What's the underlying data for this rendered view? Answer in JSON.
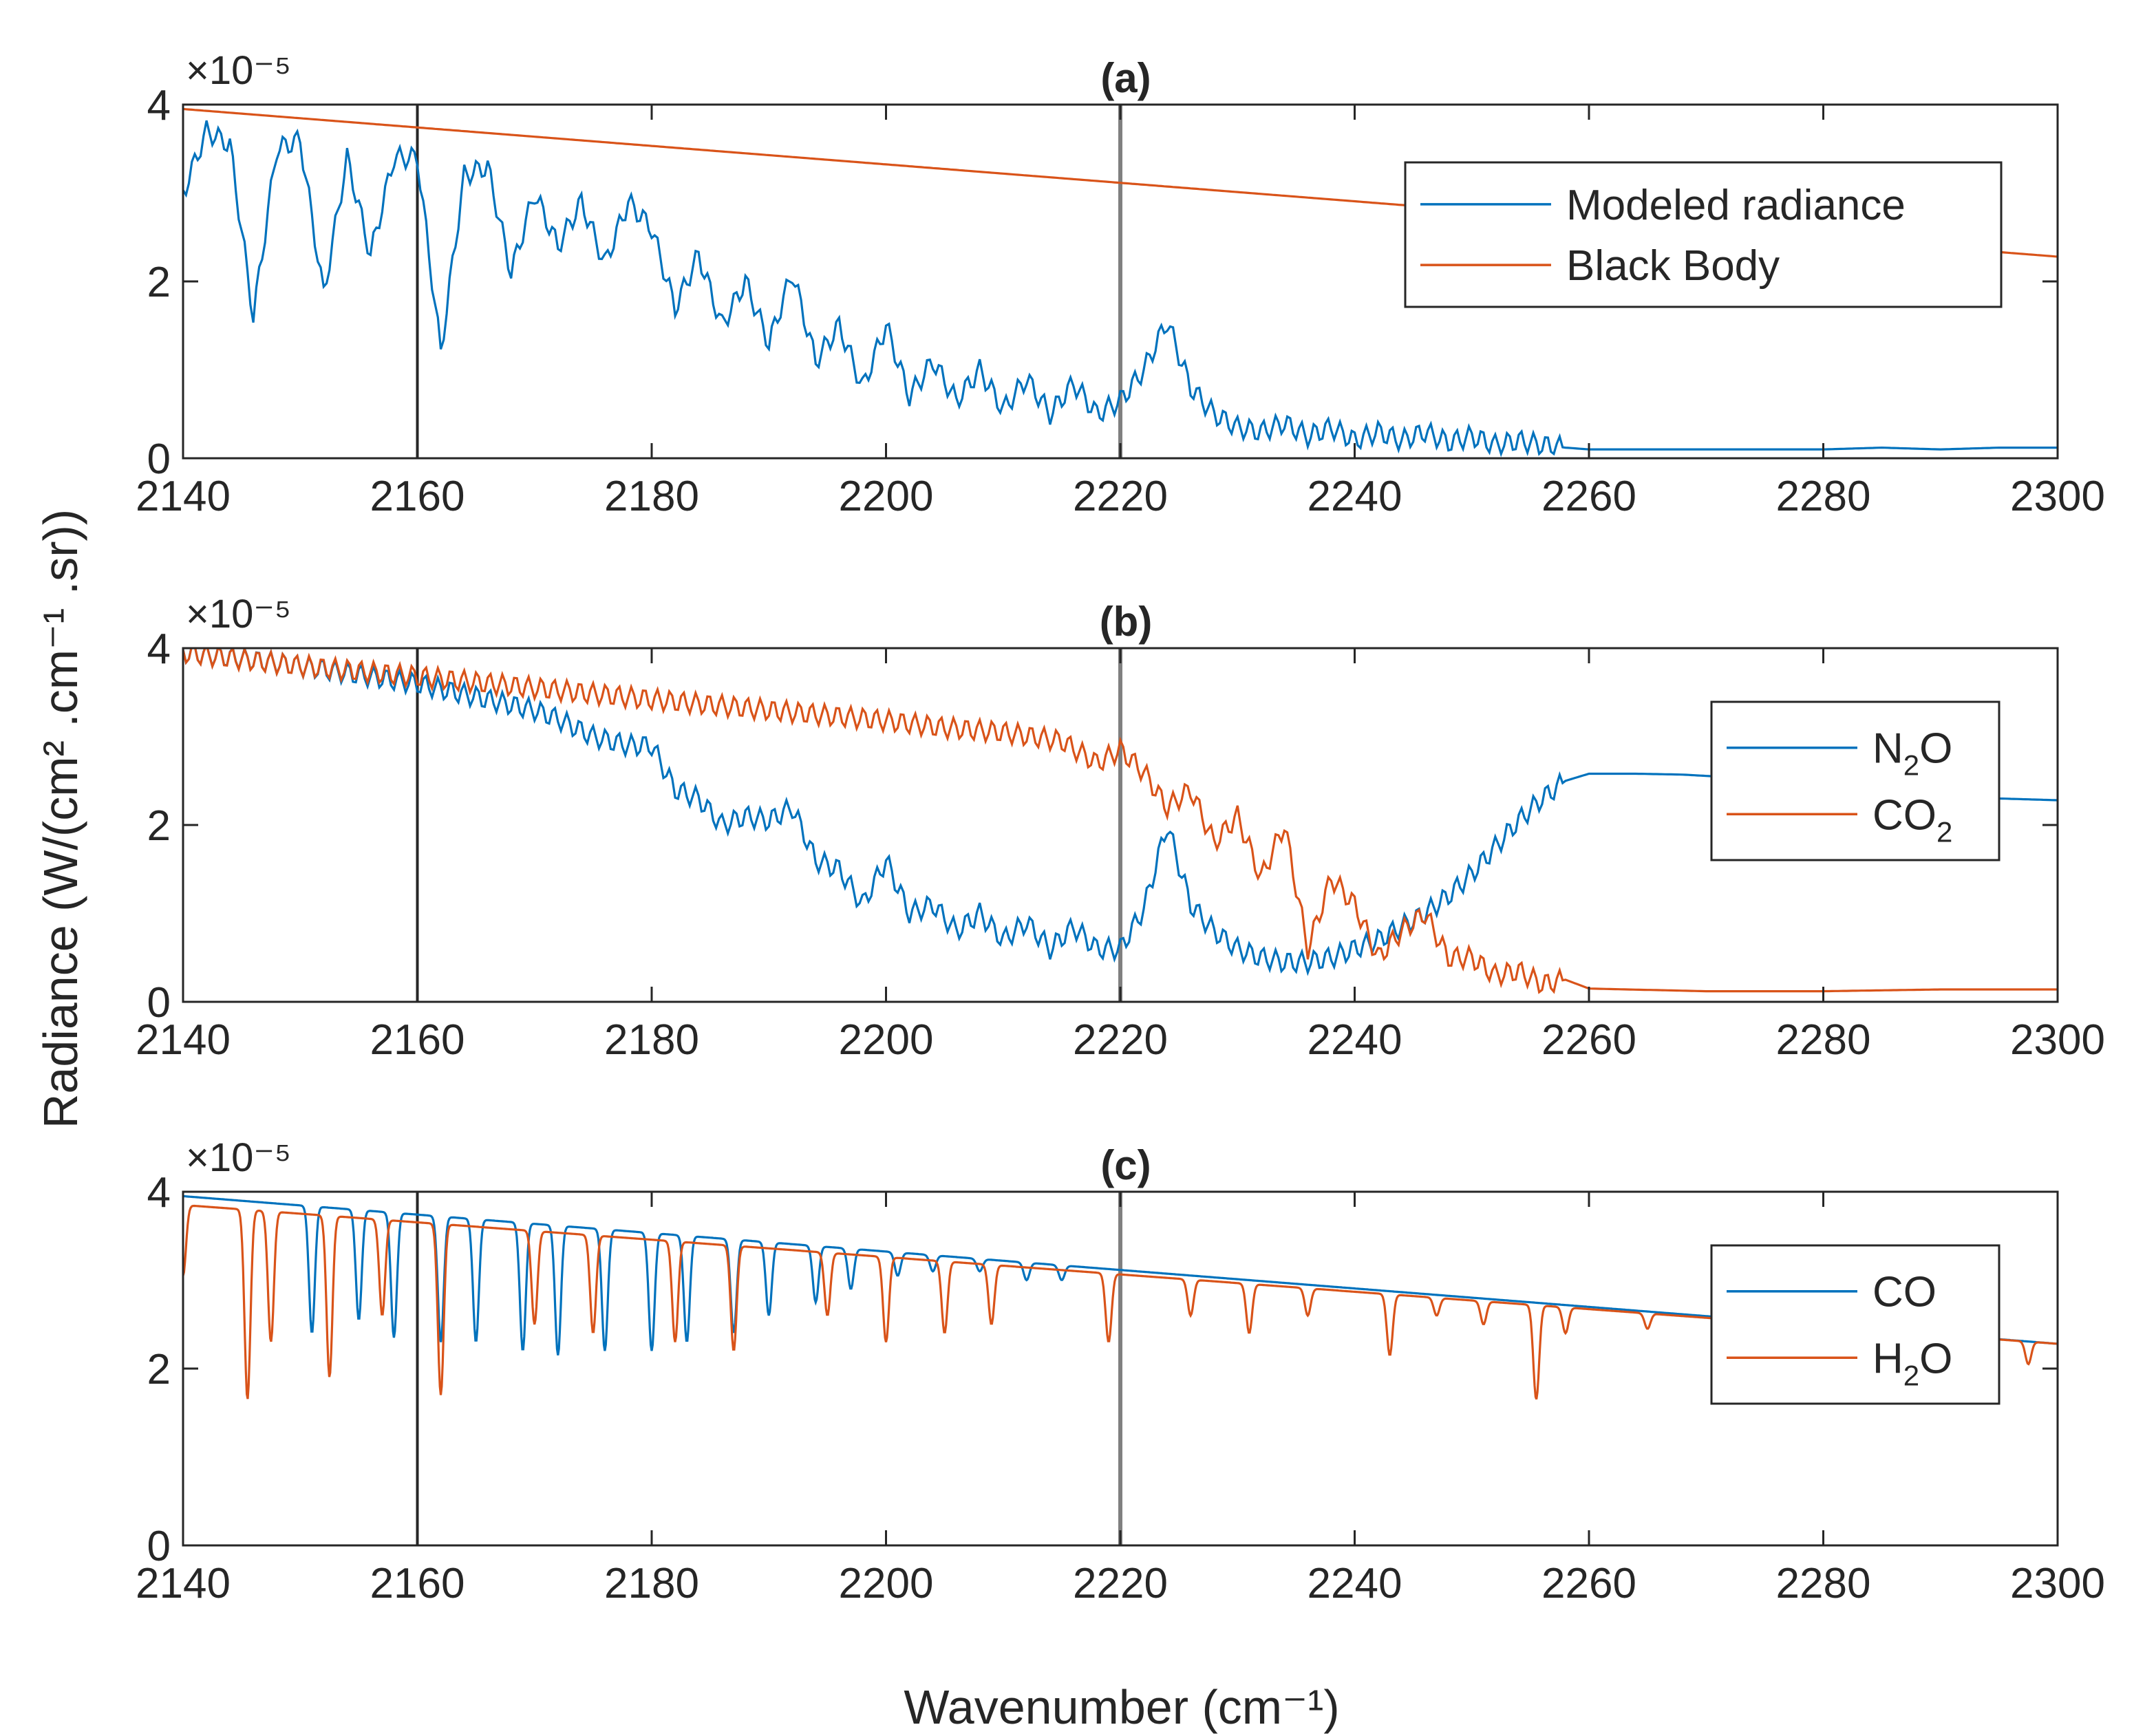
{
  "figure": {
    "ylabel": "Radiance (W/(cm² .cm⁻¹ .sr))",
    "xlabel": "Wavenumber (cm⁻¹)",
    "exponent_label": "×10⁻⁵"
  },
  "chart_data": [
    {
      "type": "line",
      "title": "(a)",
      "xlabel": "Wavenumber (cm⁻¹)",
      "ylabel": "Radiance (W/(cm² .cm⁻¹ .sr))",
      "y_scale_label": "×10⁻⁵",
      "xlim": [
        2140,
        2300
      ],
      "ylim": [
        0,
        4
      ],
      "x_ticks": [
        "2140",
        "2160",
        "2180",
        "2200",
        "2220",
        "2240",
        "2260",
        "2280",
        "2300"
      ],
      "y_ticks": [
        "0",
        "2",
        "4"
      ],
      "vertical_lines": [
        2160,
        2220
      ],
      "legend_position": "top-right",
      "series": [
        {
          "name": "Modeled radiance",
          "color": "#0072BD",
          "legend": "Modeled radiance",
          "x": [
            2140,
            2142,
            2144,
            2146,
            2148,
            2150,
            2152,
            2154,
            2156,
            2158,
            2160,
            2162,
            2164,
            2166,
            2168,
            2170,
            2172,
            2174,
            2176,
            2178,
            2180,
            2182,
            2184,
            2186,
            2188,
            2190,
            2192,
            2194,
            2196,
            2198,
            2200,
            2202,
            2204,
            2206,
            2208,
            2210,
            2212,
            2214,
            2216,
            2218,
            2220,
            2222,
            2224,
            2226,
            2228,
            2230,
            2232,
            2234,
            2236,
            2238,
            2240,
            2242,
            2244,
            2246,
            2248,
            2250,
            2252,
            2254,
            2256,
            2258,
            2260,
            2265,
            2270,
            2275,
            2280,
            2285,
            2290,
            2295,
            2300
          ],
          "values": [
            3.0,
            3.7,
            3.55,
            1.6,
            3.5,
            3.6,
            1.85,
            3.4,
            2.3,
            3.4,
            3.4,
            1.2,
            3.2,
            3.3,
            2.1,
            3.0,
            2.4,
            2.9,
            2.2,
            2.9,
            2.6,
            1.7,
            2.3,
            1.5,
            2.0,
            1.3,
            2.1,
            1.1,
            1.5,
            0.8,
            1.5,
            0.7,
            1.1,
            0.65,
            1.0,
            0.55,
            0.9,
            0.5,
            0.85,
            0.5,
            0.65,
            1.0,
            1.55,
            0.8,
            0.5,
            0.35,
            0.3,
            0.4,
            0.25,
            0.35,
            0.2,
            0.3,
            0.2,
            0.3,
            0.18,
            0.25,
            0.15,
            0.2,
            0.15,
            0.12,
            0.1,
            0.1,
            0.1,
            0.1,
            0.1,
            0.12,
            0.1,
            0.12,
            0.12
          ]
        },
        {
          "name": "Black Body",
          "color": "#D95319",
          "legend": "Black Body",
          "x": [
            2140,
            2300
          ],
          "values": [
            3.95,
            2.28
          ]
        }
      ]
    },
    {
      "type": "line",
      "title": "(b)",
      "xlabel": "Wavenumber (cm⁻¹)",
      "ylabel": "Radiance (W/(cm² .cm⁻¹ .sr))",
      "y_scale_label": "×10⁻⁵",
      "xlim": [
        2140,
        2300
      ],
      "ylim": [
        0,
        4
      ],
      "x_ticks": [
        "2140",
        "2160",
        "2180",
        "2200",
        "2220",
        "2240",
        "2260",
        "2280",
        "2300"
      ],
      "y_ticks": [
        "0",
        "2",
        "4"
      ],
      "vertical_lines": [
        2160,
        2220
      ],
      "legend_position": "right",
      "series": [
        {
          "name": "N2O",
          "legend_main": "N",
          "legend_sub": "2",
          "legend_tail": "O",
          "color": "#0072BD",
          "x": [
            2140,
            2145,
            2150,
            2155,
            2160,
            2165,
            2170,
            2172,
            2175,
            2178,
            2180,
            2182,
            2184,
            2186,
            2188,
            2190,
            2192,
            2194,
            2196,
            2198,
            2200,
            2202,
            2204,
            2206,
            2208,
            2210,
            2212,
            2214,
            2216,
            2218,
            2220,
            2222,
            2224,
            2226,
            2228,
            2230,
            2232,
            2234,
            2236,
            2238,
            2240,
            2242,
            2244,
            2246,
            2248,
            2250,
            2252,
            2254,
            2256,
            2258,
            2260,
            2264,
            2268,
            2272,
            2276,
            2280,
            2285,
            2290,
            2295,
            2300
          ],
          "values": [
            3.95,
            3.88,
            3.8,
            3.7,
            3.6,
            3.45,
            3.3,
            3.2,
            3.0,
            2.9,
            2.9,
            2.4,
            2.3,
            2.0,
            2.1,
            2.05,
            2.2,
            1.6,
            1.5,
            1.1,
            1.6,
            1.0,
            1.1,
            0.8,
            1.0,
            0.7,
            0.9,
            0.6,
            0.85,
            0.6,
            0.6,
            1.05,
            2.0,
            1.1,
            0.8,
            0.6,
            0.5,
            0.45,
            0.45,
            0.5,
            0.6,
            0.7,
            0.85,
            1.0,
            1.2,
            1.45,
            1.75,
            2.05,
            2.3,
            2.5,
            2.58,
            2.58,
            2.57,
            2.54,
            2.5,
            2.46,
            2.4,
            2.35,
            2.3,
            2.28
          ]
        },
        {
          "name": "CO2",
          "legend_main": "CO",
          "legend_sub": "2",
          "legend_tail": "",
          "color": "#D95319",
          "x": [
            2140,
            2150,
            2160,
            2170,
            2180,
            2190,
            2200,
            2205,
            2210,
            2215,
            2218,
            2220,
            2222,
            2224,
            2226,
            2228,
            2230,
            2232,
            2234,
            2236,
            2238,
            2240,
            2242,
            2244,
            2246,
            2248,
            2250,
            2252,
            2254,
            2256,
            2258,
            2260,
            2270,
            2280,
            2290,
            2300
          ],
          "values": [
            3.95,
            3.8,
            3.68,
            3.55,
            3.42,
            3.3,
            3.18,
            3.1,
            3.05,
            2.95,
            2.7,
            2.85,
            2.6,
            2.2,
            2.4,
            1.8,
            2.1,
            1.4,
            2.0,
            0.6,
            1.4,
            1.1,
            0.5,
            0.8,
            1.0,
            0.5,
            0.5,
            0.3,
            0.35,
            0.2,
            0.25,
            0.15,
            0.12,
            0.12,
            0.14,
            0.14
          ]
        }
      ]
    },
    {
      "type": "line",
      "title": "(c)",
      "xlabel": "Wavenumber (cm⁻¹)",
      "ylabel": "Radiance (W/(cm² .cm⁻¹ .sr))",
      "y_scale_label": "×10⁻⁵",
      "xlim": [
        2140,
        2300
      ],
      "ylim": [
        0,
        4
      ],
      "x_ticks": [
        "2140",
        "2160",
        "2180",
        "2200",
        "2220",
        "2240",
        "2260",
        "2280",
        "2300"
      ],
      "y_ticks": [
        "0",
        "2",
        "4"
      ],
      "vertical_lines": [
        2160,
        2220
      ],
      "legend_position": "right",
      "series": [
        {
          "name": "CO",
          "legend_main": "CO",
          "legend_sub": "",
          "legend_tail": "",
          "color": "#0072BD",
          "baseline": [
            3.95,
            2.28
          ],
          "dips": [
            [
              2151,
              2.4
            ],
            [
              2155,
              2.55
            ],
            [
              2158,
              2.35
            ],
            [
              2162,
              2.3
            ],
            [
              2165,
              2.3
            ],
            [
              2169,
              2.2
            ],
            [
              2172,
              2.15
            ],
            [
              2176,
              2.2
            ],
            [
              2180,
              2.2
            ],
            [
              2183,
              2.3
            ],
            [
              2187,
              2.4
            ],
            [
              2190,
              2.6
            ],
            [
              2194,
              2.75
            ],
            [
              2197,
              2.9
            ],
            [
              2201,
              3.05
            ],
            [
              2204,
              3.1
            ],
            [
              2208,
              3.1
            ],
            [
              2212,
              3.0
            ],
            [
              2215,
              3.0
            ]
          ]
        },
        {
          "name": "H2O",
          "legend_main": "H",
          "legend_sub": "2",
          "legend_tail": "O",
          "color": "#D95319",
          "baseline": [
            3.85,
            2.28
          ],
          "dips": [
            [
              2140,
              3.05
            ],
            [
              2145.5,
              1.65
            ],
            [
              2147.5,
              2.3
            ],
            [
              2152.5,
              1.9
            ],
            [
              2157,
              2.6
            ],
            [
              2162,
              1.7
            ],
            [
              2170,
              2.5
            ],
            [
              2175,
              2.4
            ],
            [
              2182,
              2.3
            ],
            [
              2187,
              2.2
            ],
            [
              2195,
              2.6
            ],
            [
              2200,
              2.3
            ],
            [
              2205,
              2.4
            ],
            [
              2209,
              2.5
            ],
            [
              2219,
              2.3
            ],
            [
              2226,
              2.6
            ],
            [
              2231,
              2.4
            ],
            [
              2236,
              2.6
            ],
            [
              2243,
              2.15
            ],
            [
              2247,
              2.6
            ],
            [
              2251,
              2.5
            ],
            [
              2255.5,
              1.65
            ],
            [
              2258,
              2.4
            ],
            [
              2265,
              2.45
            ],
            [
              2297.5,
              2.05
            ]
          ]
        }
      ]
    }
  ]
}
